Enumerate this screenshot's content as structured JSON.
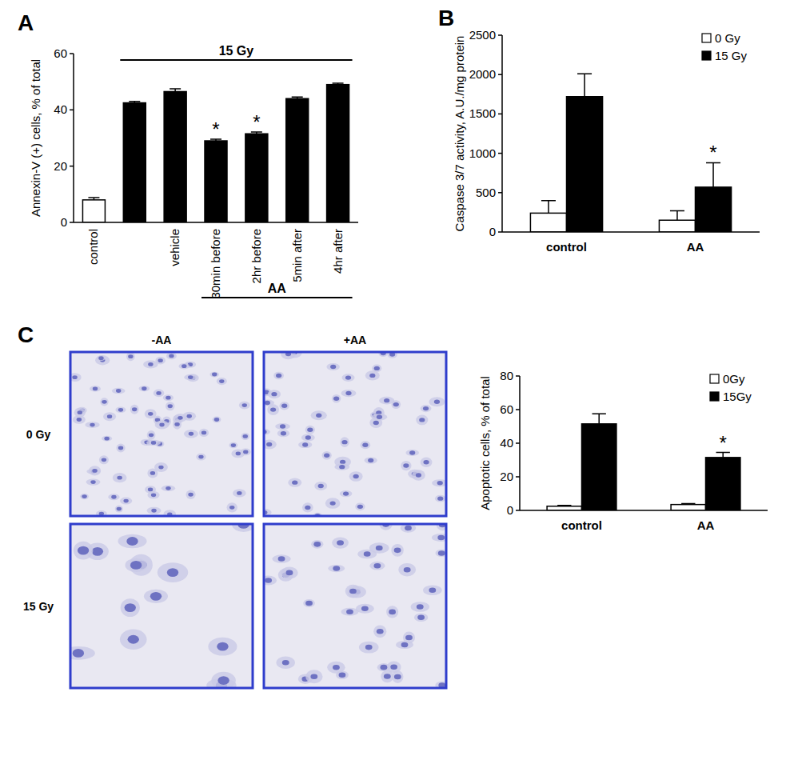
{
  "chart_data": [
    {
      "type": "bar",
      "panel": "A",
      "y_label": "Annexin-V (+) cells, % of total",
      "categories": [
        "control",
        null,
        "vehicle",
        "30min before",
        "2hr before",
        "5min after",
        "4hr after"
      ],
      "values": [
        8,
        42.5,
        46.5,
        29,
        31.5,
        44,
        49
      ],
      "errors": [
        0.8,
        0.5,
        1,
        0.6,
        0.6,
        0.6,
        0.5
      ],
      "colors": [
        "#ffffff",
        "#000000",
        "#000000",
        "#000000",
        "#000000",
        "#000000",
        "#000000"
      ],
      "significant": [
        false,
        false,
        false,
        true,
        true,
        false,
        false
      ],
      "significance_label": "*",
      "groups": [
        {
          "label": "15 Gy",
          "from": 1,
          "to": 6,
          "position": "above"
        },
        {
          "label": "AA",
          "from": 3,
          "to": 6,
          "position": "below"
        }
      ],
      "ylim": [
        0,
        60
      ],
      "yticks": [
        0,
        20,
        40,
        60
      ],
      "grid": false
    },
    {
      "type": "bar",
      "panel": "B",
      "y_label": "Caspase 3/7 activity, A.U./mg protein",
      "categories": [
        "control",
        "AA"
      ],
      "series": [
        {
          "name": "0 Gy",
          "color": "#ffffff",
          "values": [
            240,
            150
          ],
          "errors": [
            160,
            120
          ],
          "significant": [
            false,
            false
          ]
        },
        {
          "name": "15 Gy",
          "color": "#000000",
          "values": [
            1720,
            570
          ],
          "errors": [
            290,
            310
          ],
          "significant": [
            false,
            true
          ]
        }
      ],
      "significance_label": "*",
      "legend": "upper right",
      "ylim": [
        0,
        2500
      ],
      "yticks": [
        0,
        500,
        1000,
        1500,
        2000,
        2500
      ],
      "grid": false
    },
    {
      "type": "bar",
      "panel": "C",
      "y_label": "Apoptotic cells, % of total",
      "categories": [
        "control",
        "AA"
      ],
      "series": [
        {
          "name": "0Gy",
          "color": "#ffffff",
          "values": [
            2.5,
            3.5
          ],
          "errors": [
            0.5,
            0.6
          ],
          "significant": [
            false,
            false
          ]
        },
        {
          "name": "15Gy",
          "color": "#000000",
          "values": [
            51.5,
            31.5
          ],
          "errors": [
            6,
            3
          ],
          "significant": [
            false,
            true
          ]
        }
      ],
      "significance_label": "*",
      "legend": "upper right",
      "ylim": [
        0,
        80
      ],
      "yticks": [
        0,
        20,
        40,
        60,
        80
      ],
      "grid": false
    }
  ],
  "micrographs": {
    "columns": [
      "-AA",
      "+AA"
    ],
    "rows": [
      "0 Gy",
      "15 Gy"
    ]
  }
}
